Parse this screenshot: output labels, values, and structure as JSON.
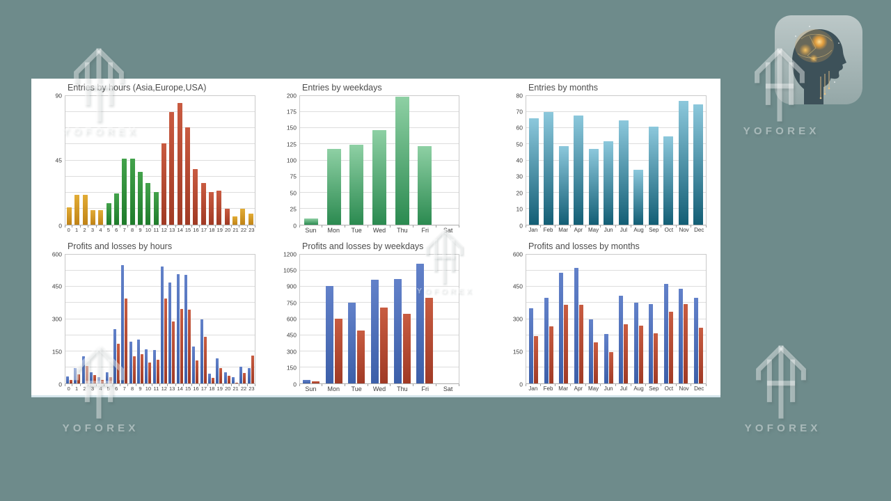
{
  "colors": {
    "background": "#6e8b8b",
    "panel": "#ffffff",
    "watermark_white": "#ffffff",
    "profit_blue": "#4a6fb8",
    "loss_red": "#b5492f",
    "entries_orange": "#d8a02d",
    "entries_green": "#33973d",
    "entries_red": "#bf4f35",
    "months_teal": "#2e89a8",
    "weekday_green": "#3fa468"
  },
  "watermark": {
    "text": "YOFOREX"
  },
  "app_icon": {
    "description_name": "yoforex-ai-brain-head-logo"
  },
  "chart_data": [
    {
      "id": "entries-by-hours",
      "type": "bar",
      "title": "Entries by hours (Asia,Europe,USA)",
      "categories": [
        "0",
        "1",
        "2",
        "3",
        "4",
        "5",
        "6",
        "7",
        "8",
        "9",
        "10",
        "11",
        "12",
        "13",
        "14",
        "15",
        "16",
        "17",
        "18",
        "19",
        "20",
        "21",
        "22",
        "23"
      ],
      "values": [
        12,
        21,
        21,
        10,
        10,
        15,
        22,
        46,
        46,
        37,
        29,
        23,
        57,
        79,
        85,
        68,
        39,
        29,
        23,
        24,
        11,
        6,
        11,
        8
      ],
      "bar_color_groups": [
        "orange",
        "orange",
        "orange",
        "orange",
        "orange",
        "green",
        "green",
        "green",
        "green",
        "green",
        "green",
        "green",
        "red",
        "red",
        "red",
        "red",
        "red",
        "red",
        "red",
        "red",
        "red",
        "orange",
        "orange",
        "orange"
      ],
      "palette": {
        "orange": [
          "#e2ac35",
          "#c08317"
        ],
        "green": [
          "#43a24b",
          "#1f7c2b"
        ],
        "red": [
          "#c95b41",
          "#a03a24"
        ]
      },
      "ylim": [
        0,
        90
      ],
      "ytick_step": 45,
      "grid_divisions": 8,
      "grid": true,
      "legend": "none"
    },
    {
      "id": "entries-by-weekdays",
      "type": "bar",
      "title": "Entries by weekdays",
      "categories": [
        "Sun",
        "Mon",
        "Tue",
        "Wed",
        "Thu",
        "Fri",
        "Sat"
      ],
      "values": [
        10,
        118,
        124,
        147,
        199,
        122,
        0
      ],
      "bar_gradient": [
        "#8ed0a4",
        "#2b8a50"
      ],
      "ylim": [
        0,
        200
      ],
      "ytick_step": 25,
      "grid_divisions": 8,
      "grid": true,
      "legend": "none"
    },
    {
      "id": "entries-by-months",
      "type": "bar",
      "title": "Entries by months",
      "categories": [
        "Jan",
        "Feb",
        "Mar",
        "Apr",
        "May",
        "Jun",
        "Jul",
        "Aug",
        "Sep",
        "Oct",
        "Nov",
        "Dec"
      ],
      "values": [
        66,
        70,
        49,
        68,
        47,
        52,
        65,
        34,
        61,
        55,
        77,
        75
      ],
      "bar_gradient": [
        "#8cc8dc",
        "#135e75"
      ],
      "ylim": [
        0,
        80
      ],
      "ytick_step": 10,
      "grid_divisions": 8,
      "grid": true,
      "legend": "none"
    },
    {
      "id": "profits-losses-by-hours",
      "type": "bar",
      "title": "Profits and losses by hours",
      "categories": [
        "0",
        "1",
        "2",
        "3",
        "4",
        "5",
        "6",
        "7",
        "8",
        "9",
        "10",
        "11",
        "12",
        "13",
        "14",
        "15",
        "16",
        "17",
        "18",
        "19",
        "20",
        "21",
        "22",
        "23"
      ],
      "series": [
        {
          "name": "Profits",
          "gradient": [
            "#6281c9",
            "#3c5fa9"
          ],
          "values": [
            33,
            70,
            128,
            53,
            30,
            53,
            253,
            550,
            196,
            204,
            160,
            157,
            545,
            470,
            510,
            505,
            171,
            300,
            45,
            117,
            53,
            30,
            79,
            73
          ]
        },
        {
          "name": "Losses",
          "gradient": [
            "#c85c41",
            "#a03a25"
          ],
          "values": [
            16,
            42,
            81,
            38,
            16,
            30,
            184,
            395,
            126,
            135,
            98,
            111,
            395,
            289,
            348,
            345,
            107,
            216,
            25,
            70,
            36,
            4,
            49,
            129
          ]
        }
      ],
      "ylim": [
        0,
        600
      ],
      "ytick_step": 150,
      "grid_divisions": 8,
      "grid": true,
      "legend": "none"
    },
    {
      "id": "profits-losses-by-weekdays",
      "type": "bar",
      "title": "Profits and losses by weekdays",
      "categories": [
        "Sun",
        "Mon",
        "Tue",
        "Wed",
        "Thu",
        "Fri",
        "Sat"
      ],
      "series": [
        {
          "name": "Profits",
          "gradient": [
            "#6281c9",
            "#3c5fa9"
          ],
          "values": [
            35,
            905,
            750,
            965,
            975,
            1115,
            0
          ]
        },
        {
          "name": "Losses",
          "gradient": [
            "#c85c41",
            "#a03a25"
          ],
          "values": [
            20,
            605,
            490,
            705,
            650,
            800,
            0
          ]
        }
      ],
      "ylim": [
        0,
        1200
      ],
      "ytick_step": 150,
      "grid_divisions": 8,
      "grid": true,
      "legend": "none"
    },
    {
      "id": "profits-losses-by-months",
      "type": "bar",
      "title": "Profits and losses by months",
      "categories": [
        "Jan",
        "Feb",
        "Mar",
        "Apr",
        "May",
        "Jun",
        "Jul",
        "Aug",
        "Sep",
        "Oct",
        "Nov",
        "Dec"
      ],
      "series": [
        {
          "name": "Profits",
          "gradient": [
            "#6281c9",
            "#3c5fa9"
          ],
          "values": [
            350,
            400,
            515,
            540,
            300,
            230,
            410,
            375,
            370,
            465,
            440,
            400
          ]
        },
        {
          "name": "Losses",
          "gradient": [
            "#c85c41",
            "#a03a25"
          ],
          "values": [
            220,
            265,
            365,
            365,
            190,
            145,
            275,
            270,
            235,
            335,
            370,
            260
          ]
        }
      ],
      "ylim": [
        0,
        600
      ],
      "ytick_step": 150,
      "grid_divisions": 8,
      "grid": true,
      "legend": "none"
    }
  ]
}
